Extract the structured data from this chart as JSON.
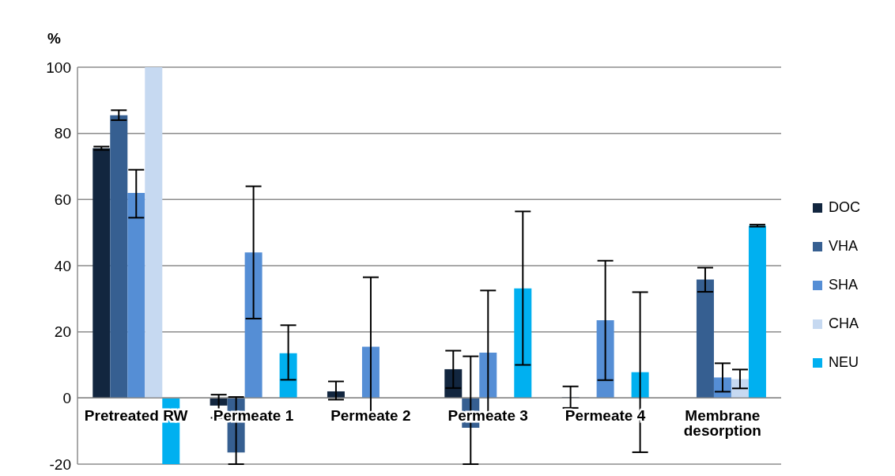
{
  "chart_data": {
    "type": "bar",
    "ylabel": "%",
    "categories": [
      "Pretreated RW",
      "Permeate 1",
      "Permeate 2",
      "Permeate 3",
      "Permeate 4",
      "Membrane desorption"
    ],
    "series": [
      {
        "name": "DOC",
        "color": "#12263f",
        "values": [
          75.5,
          -2.3,
          2,
          8.7,
          0.2,
          null
        ],
        "errors": [
          [
            75,
            76
          ],
          [
            -6,
            1
          ],
          [
            -0.5,
            5
          ],
          [
            3,
            14.3
          ],
          [
            -3,
            3.5
          ],
          null
        ]
      },
      {
        "name": "VHA",
        "color": "#365f91",
        "values": [
          85.5,
          -16.5,
          null,
          -9,
          null,
          35.8
        ],
        "errors": [
          [
            84,
            87
          ],
          [
            -20,
            0.3
          ],
          null,
          [
            -20,
            12.6
          ],
          null,
          [
            32.1,
            39.4
          ]
        ]
      },
      {
        "name": "SHA",
        "color": "#558ed5",
        "values": [
          62,
          44,
          15.5,
          13.7,
          23.5,
          6.2
        ],
        "errors": [
          [
            54.5,
            69
          ],
          [
            24,
            64
          ],
          [
            -5,
            36.5
          ],
          [
            -5.1,
            32.5
          ],
          [
            5.4,
            41.5
          ],
          [
            1.9,
            10.5
          ]
        ]
      },
      {
        "name": "CHA",
        "color": "#c6d9f1",
        "values": [
          100,
          null,
          null,
          null,
          null,
          5.7
        ],
        "errors": [
          null,
          null,
          null,
          null,
          null,
          [
            2.9,
            8.6
          ]
        ]
      },
      {
        "name": "NEU",
        "color": "#00b0f0",
        "values": [
          -20,
          13.5,
          null,
          33.1,
          7.8,
          52.1
        ],
        "errors": [
          null,
          [
            5.5,
            22
          ],
          null,
          [
            10,
            56.4
          ],
          [
            -16.4,
            32
          ],
          [
            51.8,
            52.4
          ]
        ]
      }
    ],
    "ylim": [
      -20,
      100
    ],
    "yticks": [
      -20,
      0,
      20,
      40,
      60,
      80,
      100
    ],
    "grid": "y",
    "legend": "right"
  }
}
